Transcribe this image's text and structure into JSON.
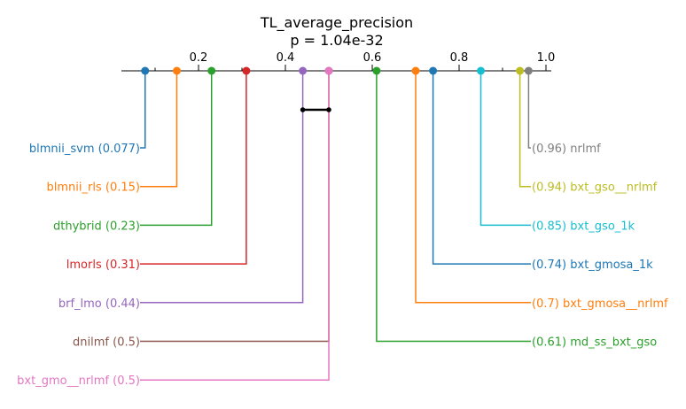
{
  "chart_data": {
    "type": "critical-difference",
    "title": "TL_average_precision",
    "subtitle": "p = 1.04e-32",
    "axis": {
      "range": [
        0.0,
        1.0
      ],
      "ticks": [
        0.2,
        0.4,
        0.6,
        0.8,
        1.0
      ],
      "tick_labels": [
        "0.2",
        "0.4",
        "0.6",
        "0.8",
        "1.0"
      ],
      "minor_ticks": [
        0.1,
        0.3,
        0.5,
        0.7,
        0.9
      ]
    },
    "methods": [
      {
        "name": "blmnii_svm",
        "value": 0.077,
        "value_label": "0.077",
        "side": "left",
        "color": "#1f77b4"
      },
      {
        "name": "blmnii_rls",
        "value": 0.15,
        "value_label": "0.15",
        "side": "left",
        "color": "#ff7f0e"
      },
      {
        "name": "dthybrid",
        "value": 0.23,
        "value_label": "0.23",
        "side": "left",
        "color": "#2ca02c"
      },
      {
        "name": "lmorls",
        "value": 0.31,
        "value_label": "0.31",
        "side": "left",
        "color": "#d62728"
      },
      {
        "name": "brf_lmo",
        "value": 0.44,
        "value_label": "0.44",
        "side": "left",
        "color": "#9467bd"
      },
      {
        "name": "dnilmf",
        "value": 0.5,
        "value_label": "0.5",
        "side": "left",
        "color": "#8c564b"
      },
      {
        "name": "bxt_gmo__nrlmf",
        "value": 0.5,
        "value_label": "0.5",
        "side": "left",
        "color": "#e377c2"
      },
      {
        "name": "nrlmf",
        "value": 0.96,
        "value_label": "0.96",
        "side": "right",
        "color": "#7f7f7f"
      },
      {
        "name": "bxt_gso__nrlmf",
        "value": 0.94,
        "value_label": "0.94",
        "side": "right",
        "color": "#bcbd22"
      },
      {
        "name": "bxt_gso_1k",
        "value": 0.85,
        "value_label": "0.85",
        "side": "right",
        "color": "#17becf"
      },
      {
        "name": "bxt_gmosa_1k",
        "value": 0.74,
        "value_label": "0.74",
        "side": "right",
        "color": "#1f77b4"
      },
      {
        "name": "bxt_gmosa__nrlmf",
        "value": 0.7,
        "value_label": "0.7",
        "side": "right",
        "color": "#ff7f0e"
      },
      {
        "name": "md_ss_bxt_gso",
        "value": 0.61,
        "value_label": "0.61",
        "side": "right",
        "color": "#2ca02c"
      }
    ],
    "cliques": [
      {
        "from": 0.44,
        "to": 0.5,
        "color": "#000000"
      }
    ]
  }
}
